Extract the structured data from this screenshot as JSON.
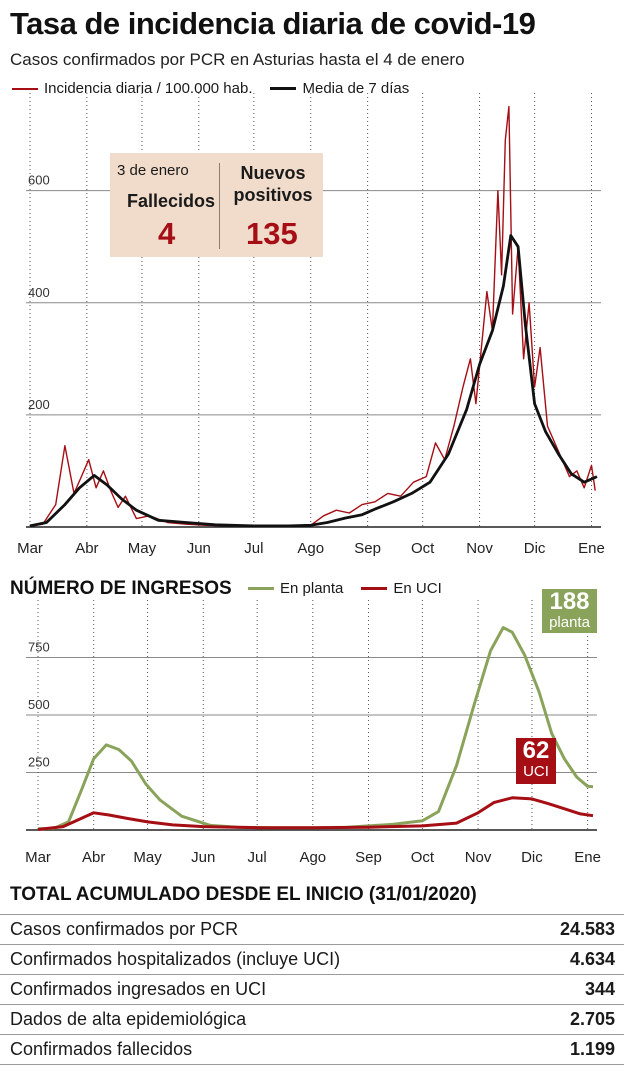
{
  "title": "Tasa de incidencia diaria de covid-19",
  "subtitle": "Casos confirmados por PCR en Asturias hasta el 4 de enero",
  "colors": {
    "daily": "#a50e14",
    "avg": "#111111",
    "planta": "#8aa35a",
    "uci": "#a50e14",
    "infobox": "#f1dccb"
  },
  "chart_data": [
    {
      "type": "line",
      "legend": [
        "Incidencia diaria / 100.000 hab.",
        "Media de 7 días"
      ],
      "x_ticks": [
        "Mar",
        "Abr",
        "May",
        "Jun",
        "Jul",
        "Ago",
        "Sep",
        "Oct",
        "Nov",
        "Dic",
        "Ene"
      ],
      "y_ticks": [
        "200",
        "400",
        "600"
      ],
      "ylim": [
        0,
        760
      ],
      "grid": true,
      "infobox": {
        "date": "3 de enero",
        "deaths_label": "Fallecidos",
        "deaths": "4",
        "positives_label_1": "Nuevos",
        "positives_label_2": "positivos",
        "positives": "135"
      },
      "series": [
        {
          "name": "Incidencia diaria / 100.000 hab.",
          "x": [
            "2020-03-01",
            "2020-03-08",
            "2020-03-15",
            "2020-03-20",
            "2020-03-25",
            "2020-03-29",
            "2020-04-02",
            "2020-04-06",
            "2020-04-10",
            "2020-04-14",
            "2020-04-18",
            "2020-04-22",
            "2020-04-28",
            "2020-05-05",
            "2020-05-15",
            "2020-05-25",
            "2020-06-05",
            "2020-06-20",
            "2020-07-05",
            "2020-07-20",
            "2020-08-01",
            "2020-08-08",
            "2020-08-15",
            "2020-08-22",
            "2020-08-29",
            "2020-09-05",
            "2020-09-12",
            "2020-09-19",
            "2020-09-26",
            "2020-10-03",
            "2020-10-08",
            "2020-10-13",
            "2020-10-18",
            "2020-10-23",
            "2020-10-27",
            "2020-10-30",
            "2020-11-02",
            "2020-11-05",
            "2020-11-08",
            "2020-11-11",
            "2020-11-13",
            "2020-11-15",
            "2020-11-17",
            "2020-11-19",
            "2020-11-22",
            "2020-11-25",
            "2020-11-28",
            "2020-12-01",
            "2020-12-04",
            "2020-12-08",
            "2020-12-12",
            "2020-12-16",
            "2020-12-20",
            "2020-12-24",
            "2020-12-28",
            "2021-01-01",
            "2021-01-03"
          ],
          "values": [
            2,
            5,
            40,
            145,
            60,
            90,
            120,
            70,
            100,
            65,
            35,
            55,
            15,
            20,
            8,
            5,
            3,
            2,
            2,
            2,
            3,
            20,
            30,
            25,
            40,
            45,
            60,
            55,
            80,
            90,
            150,
            120,
            180,
            250,
            300,
            220,
            320,
            420,
            350,
            600,
            450,
            690,
            750,
            380,
            500,
            300,
            400,
            250,
            320,
            180,
            150,
            120,
            90,
            100,
            70,
            110,
            65
          ]
        },
        {
          "name": "Media de 7 días",
          "x": [
            "2020-03-01",
            "2020-03-10",
            "2020-03-20",
            "2020-03-28",
            "2020-04-05",
            "2020-04-12",
            "2020-04-20",
            "2020-04-28",
            "2020-05-10",
            "2020-05-25",
            "2020-06-10",
            "2020-07-01",
            "2020-07-20",
            "2020-08-01",
            "2020-08-10",
            "2020-08-20",
            "2020-08-29",
            "2020-09-05",
            "2020-09-15",
            "2020-09-25",
            "2020-10-05",
            "2020-10-15",
            "2020-10-25",
            "2020-11-01",
            "2020-11-08",
            "2020-11-14",
            "2020-11-18",
            "2020-11-22",
            "2020-11-26",
            "2020-12-01",
            "2020-12-07",
            "2020-12-14",
            "2020-12-21",
            "2020-12-28",
            "2021-01-04"
          ],
          "values": [
            2,
            8,
            40,
            70,
            92,
            75,
            50,
            30,
            12,
            8,
            4,
            2,
            2,
            3,
            8,
            16,
            22,
            32,
            45,
            60,
            80,
            130,
            210,
            290,
            350,
            430,
            520,
            500,
            360,
            220,
            170,
            130,
            95,
            80,
            90
          ]
        }
      ]
    },
    {
      "type": "line",
      "title": "NÚMERO DE INGRESOS",
      "legend": [
        "En planta",
        "En UCI"
      ],
      "x_ticks": [
        "Mar",
        "Abr",
        "May",
        "Jun",
        "Jul",
        "Ago",
        "Sep",
        "Oct",
        "Nov",
        "Dic",
        "Ene"
      ],
      "y_ticks": [
        "250",
        "500",
        "750"
      ],
      "ylim": [
        0,
        1000
      ],
      "grid": true,
      "series": [
        {
          "name": "En planta",
          "x": [
            "2020-03-01",
            "2020-03-10",
            "2020-03-18",
            "2020-03-25",
            "2020-04-01",
            "2020-04-08",
            "2020-04-15",
            "2020-04-22",
            "2020-04-30",
            "2020-05-08",
            "2020-05-20",
            "2020-06-05",
            "2020-06-20",
            "2020-07-10",
            "2020-08-01",
            "2020-08-20",
            "2020-09-01",
            "2020-09-15",
            "2020-10-01",
            "2020-10-10",
            "2020-10-20",
            "2020-10-30",
            "2020-11-08",
            "2020-11-15",
            "2020-11-20",
            "2020-11-27",
            "2020-12-05",
            "2020-12-12",
            "2020-12-19",
            "2020-12-26",
            "2021-01-01",
            "2021-01-04"
          ],
          "values": [
            5,
            8,
            35,
            170,
            310,
            370,
            350,
            300,
            200,
            130,
            60,
            20,
            12,
            10,
            10,
            12,
            18,
            25,
            40,
            80,
            280,
            550,
            780,
            880,
            860,
            760,
            600,
            420,
            310,
            230,
            190,
            188
          ]
        },
        {
          "name": "En UCI",
          "x": [
            "2020-03-01",
            "2020-03-15",
            "2020-03-25",
            "2020-04-01",
            "2020-04-10",
            "2020-04-20",
            "2020-05-01",
            "2020-05-15",
            "2020-06-01",
            "2020-07-01",
            "2020-08-01",
            "2020-09-01",
            "2020-10-01",
            "2020-10-20",
            "2020-11-01",
            "2020-11-10",
            "2020-11-20",
            "2020-12-01",
            "2020-12-10",
            "2020-12-20",
            "2020-12-28",
            "2021-01-04"
          ],
          "values": [
            2,
            15,
            50,
            75,
            65,
            50,
            35,
            22,
            15,
            10,
            10,
            12,
            18,
            30,
            75,
            120,
            140,
            135,
            115,
            90,
            70,
            62
          ]
        }
      ],
      "callouts": [
        {
          "value": "188",
          "label": "planta"
        },
        {
          "value": "62",
          "label": "UCI"
        }
      ]
    }
  ],
  "totals": {
    "title": "TOTAL ACUMULADO DESDE EL INICIO (31/01/2020)",
    "rows": [
      {
        "label": "Casos confirmados por PCR",
        "value": "24.583"
      },
      {
        "label": "Confirmados hospitalizados (incluye UCI)",
        "value": "4.634"
      },
      {
        "label": "Confirmados ingresados en UCI",
        "value": "344"
      },
      {
        "label": "Dados de alta epidemiológica",
        "value": "2.705"
      },
      {
        "label": "Confirmados fallecidos",
        "value": "1.199"
      }
    ]
  }
}
